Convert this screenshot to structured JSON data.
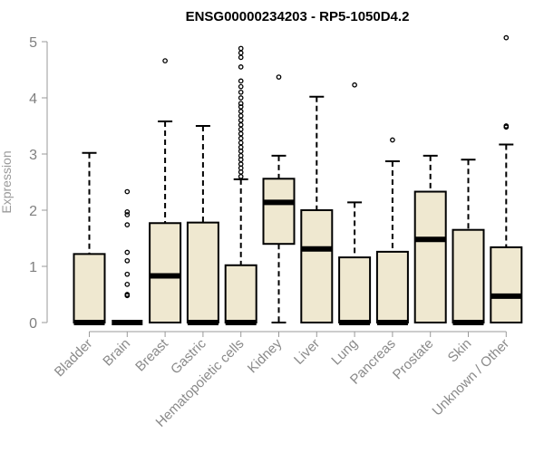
{
  "chart_data": {
    "type": "boxplot",
    "title": "ENSG00000234203 - RP5-1050D4.2",
    "xlabel": "",
    "ylabel": "Expression",
    "ylim": [
      0,
      5
    ],
    "yticks": [
      0,
      1,
      2,
      3,
      4,
      5
    ],
    "grid": false,
    "box_fill": "#efe8d0",
    "box_stroke": "#000000",
    "axis_color": "#9a9a9a",
    "categories": [
      "Bladder",
      "Brain",
      "Breast",
      "Gastric",
      "Hematopoietic cells",
      "Kidney",
      "Liver",
      "Lung",
      "Pancreas",
      "Prostate",
      "Skin",
      "Unknown / Other"
    ],
    "boxes": [
      {
        "category": "Bladder",
        "whisker_low": 0,
        "q1": 0,
        "median": 0,
        "q3": 1.22,
        "whisker_high": 3.02,
        "outliers": []
      },
      {
        "category": "Brain",
        "whisker_low": 0,
        "q1": 0,
        "median": 0,
        "q3": 0,
        "whisker_high": 0,
        "outliers": [
          0.48,
          0.5,
          0.68,
          0.86,
          1.1,
          1.25,
          1.74,
          1.92,
          1.97,
          2.33
        ]
      },
      {
        "category": "Breast",
        "whisker_low": 0,
        "q1": 0,
        "median": 0.83,
        "q3": 1.77,
        "whisker_high": 3.58,
        "outliers": [
          4.66
        ]
      },
      {
        "category": "Gastric",
        "whisker_low": 0,
        "q1": 0,
        "median": 0,
        "q3": 1.78,
        "whisker_high": 3.5,
        "outliers": []
      },
      {
        "category": "Hematopoietic cells",
        "whisker_low": 0,
        "q1": 0,
        "median": 0,
        "q3": 1.02,
        "whisker_high": 2.55,
        "outliers": [
          2.6,
          2.68,
          2.75,
          2.82,
          2.9,
          2.97,
          3.05,
          3.12,
          3.2,
          3.28,
          3.36,
          3.44,
          3.52,
          3.6,
          3.68,
          3.76,
          3.84,
          3.9,
          4.0,
          4.1,
          4.2,
          4.3,
          4.55,
          4.72,
          4.8,
          4.88
        ]
      },
      {
        "category": "Kidney",
        "whisker_low": 0,
        "q1": 1.4,
        "median": 2.14,
        "q3": 2.56,
        "whisker_high": 2.97,
        "outliers": [
          4.37
        ]
      },
      {
        "category": "Liver",
        "whisker_low": 0,
        "q1": 0,
        "median": 1.31,
        "q3": 2.0,
        "whisker_high": 4.02,
        "outliers": []
      },
      {
        "category": "Lung",
        "whisker_low": 0,
        "q1": 0,
        "median": 0,
        "q3": 1.16,
        "whisker_high": 2.14,
        "outliers": [
          4.23
        ]
      },
      {
        "category": "Pancreas",
        "whisker_low": 0,
        "q1": 0,
        "median": 0,
        "q3": 1.26,
        "whisker_high": 2.87,
        "outliers": [
          3.25
        ]
      },
      {
        "category": "Prostate",
        "whisker_low": 0,
        "q1": 0,
        "median": 1.48,
        "q3": 2.33,
        "whisker_high": 2.97,
        "outliers": []
      },
      {
        "category": "Skin",
        "whisker_low": 0,
        "q1": 0,
        "median": 0,
        "q3": 1.65,
        "whisker_high": 2.9,
        "outliers": []
      },
      {
        "category": "Unknown / Other",
        "whisker_low": 0,
        "q1": 0,
        "median": 0.47,
        "q3": 1.34,
        "whisker_high": 3.17,
        "outliers": [
          3.48,
          3.5,
          5.07
        ]
      }
    ]
  }
}
